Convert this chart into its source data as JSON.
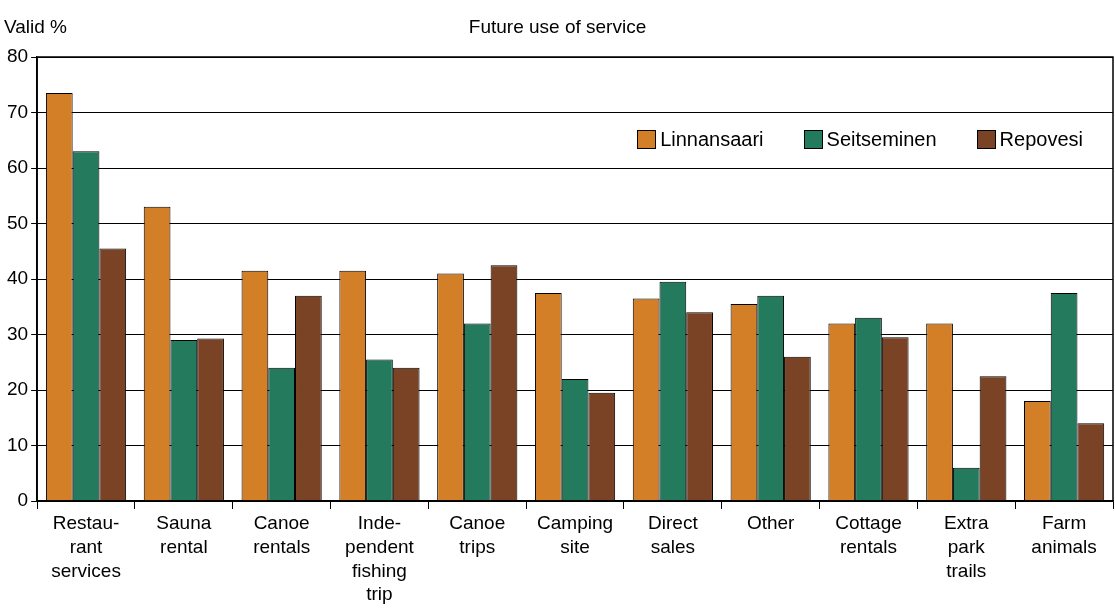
{
  "chart_data": {
    "type": "bar",
    "title": "Future use of service",
    "ylabel": "Valid %",
    "categories": [
      "Restau-\nrant\nservices",
      "Sauna\nrental",
      "Canoe\nrentals",
      "Inde-\npendent\nfishing\ntrip",
      "Canoe\ntrips",
      "Camping\nsite",
      "Direct\nsales",
      "Other",
      "Cottage\nrentals",
      "Extra\npark\ntrails",
      "Farm\nanimals"
    ],
    "series": [
      {
        "name": "Linnansaari",
        "color": "#d27f28",
        "values": [
          73.5,
          53,
          41.5,
          41.5,
          41,
          37.5,
          36.5,
          35.5,
          32,
          32,
          18
        ]
      },
      {
        "name": "Seitseminen",
        "color": "#247a5c",
        "values": [
          63,
          29,
          24,
          25.5,
          32,
          22,
          39.5,
          37,
          33,
          6,
          37.5
        ]
      },
      {
        "name": "Repovesi",
        "color": "#7a4326",
        "values": [
          45.5,
          29.3,
          37,
          24,
          42.5,
          19.5,
          34,
          26,
          29.5,
          22.5,
          14
        ]
      }
    ],
    "ylim": [
      0,
      80
    ],
    "yticks": [
      0,
      10,
      20,
      30,
      40,
      50,
      60,
      70,
      80
    ],
    "grid": "y",
    "legend": "top right"
  }
}
